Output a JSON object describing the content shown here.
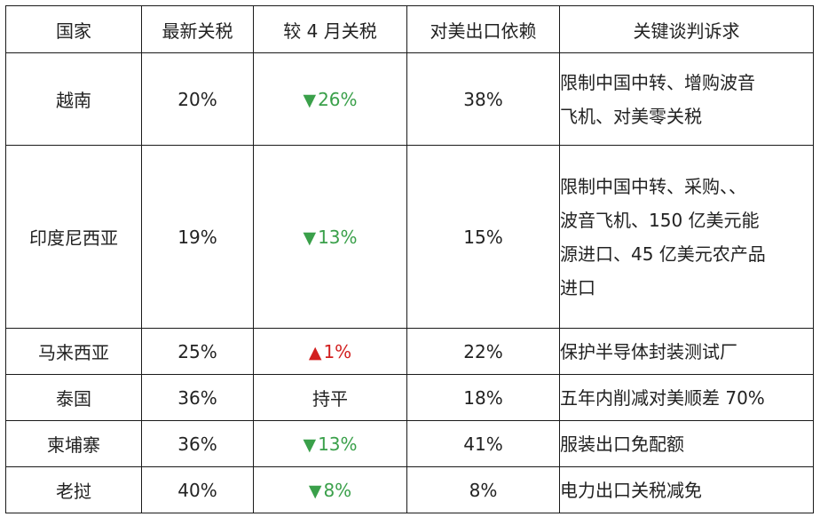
{
  "headers": [
    "国家",
    "最新关税",
    "较 4 月关税",
    "对美出口依赖",
    "关键谈判诉求"
  ],
  "rows": [
    {
      "country": "越南",
      "tariff": "20%",
      "change": {
        "direction": "down",
        "arrow": "▼",
        "value": "26%"
      },
      "dependency": "38%",
      "demand_lines": [
        "限制中国中转、增购波音",
        "飞机、对美零关税"
      ]
    },
    {
      "country": "印度尼西亚",
      "tariff": "19%",
      "change": {
        "direction": "down",
        "arrow": "▼",
        "value": "13%"
      },
      "dependency": "15%",
      "demand_lines": [
        "限制中国中转、采购、、",
        "波音飞机、150 亿美元能",
        "源进口、45 亿美元农产品",
        "进口"
      ]
    },
    {
      "country": "马来西亚",
      "tariff": "25%",
      "change": {
        "direction": "up",
        "arrow": "▲",
        "value": "1%"
      },
      "dependency": "22%",
      "demand_lines": [
        "保护半导体封装测试厂"
      ]
    },
    {
      "country": "泰国",
      "tariff": "36%",
      "change": {
        "direction": "flat",
        "arrow": "",
        "value": "持平"
      },
      "dependency": "18%",
      "demand_lines": [
        "五年内削减对美顺差 70%"
      ]
    },
    {
      "country": "柬埔寨",
      "tariff": "36%",
      "change": {
        "direction": "down",
        "arrow": "▼",
        "value": "13%"
      },
      "dependency": "41%",
      "demand_lines": [
        "服装出口免配额"
      ]
    },
    {
      "country": "老挝",
      "tariff": "40%",
      "change": {
        "direction": "down",
        "arrow": "▼",
        "value": "8%"
      },
      "dependency": "8%",
      "demand_lines": [
        "电力出口关税减免"
      ]
    }
  ]
}
